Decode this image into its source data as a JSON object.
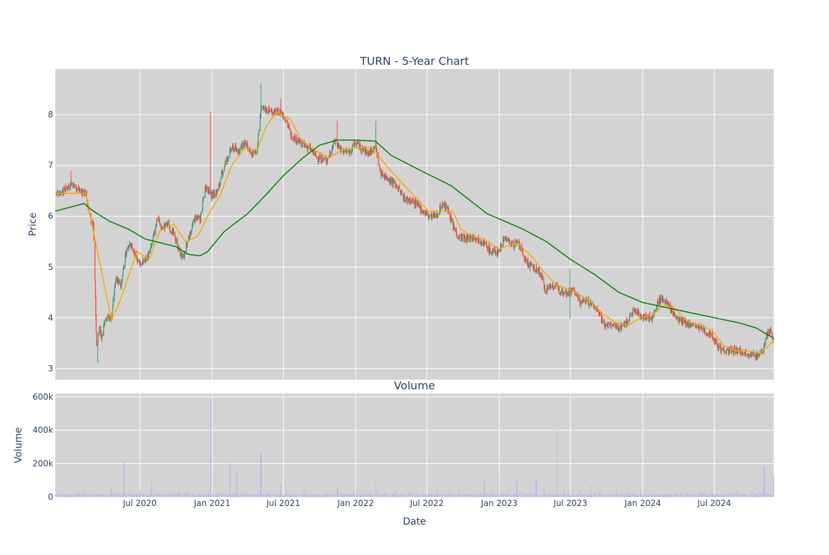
{
  "chart_data": [
    {
      "type": "candlestick",
      "title": "TURN - 5-Year Chart",
      "xlabel": "",
      "ylabel": "Price",
      "ylim": [
        2.78,
        8.9
      ],
      "yticks": [
        3,
        4,
        5,
        6,
        7,
        8
      ],
      "grid": true,
      "background": "#d3d3d3",
      "colors": {
        "up": "#3d9970",
        "down": "#ff4136",
        "ma_short": "#ffa500",
        "ma_long": "#008000"
      },
      "price_anchors": [
        [
          "2019-11-29",
          6.45
        ],
        [
          "2019-12-20",
          6.5
        ],
        [
          "2020-01-10",
          6.65
        ],
        [
          "2020-01-31",
          6.5
        ],
        [
          "2020-02-14",
          6.45
        ],
        [
          "2020-02-25",
          6.0
        ],
        [
          "2020-03-05",
          5.8
        ],
        [
          "2020-03-09",
          4.7
        ],
        [
          "2020-03-13",
          3.4
        ],
        [
          "2020-03-20",
          3.8
        ],
        [
          "2020-03-27",
          3.6
        ],
        [
          "2020-04-03",
          4.0
        ],
        [
          "2020-04-20",
          4.0
        ],
        [
          "2020-05-01",
          4.8
        ],
        [
          "2020-05-15",
          4.65
        ],
        [
          "2020-05-25",
          5.2
        ],
        [
          "2020-06-05",
          5.5
        ],
        [
          "2020-06-20",
          5.2
        ],
        [
          "2020-07-05",
          5.05
        ],
        [
          "2020-07-25",
          5.25
        ],
        [
          "2020-08-05",
          5.6
        ],
        [
          "2020-08-15",
          6.0
        ],
        [
          "2020-08-25",
          5.75
        ],
        [
          "2020-09-10",
          5.85
        ],
        [
          "2020-09-25",
          5.65
        ],
        [
          "2020-10-10",
          5.3
        ],
        [
          "2020-10-20",
          5.15
        ],
        [
          "2020-11-01",
          5.55
        ],
        [
          "2020-11-20",
          6.0
        ],
        [
          "2020-12-01",
          5.9
        ],
        [
          "2020-12-15",
          6.6
        ],
        [
          "2020-12-31",
          6.4
        ],
        [
          "2021-01-15",
          6.5
        ],
        [
          "2021-02-01",
          7.0
        ],
        [
          "2021-02-20",
          7.35
        ],
        [
          "2021-03-10",
          7.3
        ],
        [
          "2021-03-25",
          7.45
        ],
        [
          "2021-04-10",
          7.2
        ],
        [
          "2021-04-25",
          7.3
        ],
        [
          "2021-05-05",
          8.1
        ],
        [
          "2021-05-20",
          8.1
        ],
        [
          "2021-06-10",
          8.05
        ],
        [
          "2021-06-25",
          8.05
        ],
        [
          "2021-07-08",
          7.9
        ],
        [
          "2021-07-20",
          7.6
        ],
        [
          "2021-08-05",
          7.5
        ],
        [
          "2021-08-20",
          7.4
        ],
        [
          "2021-09-05",
          7.35
        ],
        [
          "2021-09-25",
          7.15
        ],
        [
          "2021-10-20",
          7.1
        ],
        [
          "2021-11-10",
          7.5
        ],
        [
          "2021-11-25",
          7.3
        ],
        [
          "2021-12-15",
          7.25
        ],
        [
          "2022-01-01",
          7.45
        ],
        [
          "2022-01-20",
          7.3
        ],
        [
          "2022-02-05",
          7.25
        ],
        [
          "2022-02-20",
          7.4
        ],
        [
          "2022-03-05",
          6.85
        ],
        [
          "2022-03-25",
          6.75
        ],
        [
          "2022-04-15",
          6.6
        ],
        [
          "2022-05-05",
          6.35
        ],
        [
          "2022-05-25",
          6.3
        ],
        [
          "2022-06-15",
          6.15
        ],
        [
          "2022-07-05",
          6.0
        ],
        [
          "2022-07-25",
          6.0
        ],
        [
          "2022-08-10",
          6.25
        ],
        [
          "2022-08-25",
          6.1
        ],
        [
          "2022-09-05",
          5.8
        ],
        [
          "2022-09-20",
          5.6
        ],
        [
          "2022-10-10",
          5.55
        ],
        [
          "2022-10-30",
          5.6
        ],
        [
          "2022-11-20",
          5.5
        ],
        [
          "2022-12-10",
          5.3
        ],
        [
          "2022-12-31",
          5.3
        ],
        [
          "2023-01-15",
          5.6
        ],
        [
          "2023-02-01",
          5.45
        ],
        [
          "2023-02-20",
          5.45
        ],
        [
          "2023-03-10",
          5.1
        ],
        [
          "2023-03-25",
          5.0
        ],
        [
          "2023-04-15",
          4.9
        ],
        [
          "2023-04-28",
          4.55
        ],
        [
          "2023-05-15",
          4.65
        ],
        [
          "2023-06-05",
          4.55
        ],
        [
          "2023-06-25",
          4.5
        ],
        [
          "2023-07-10",
          4.55
        ],
        [
          "2023-07-25",
          4.3
        ],
        [
          "2023-08-10",
          4.35
        ],
        [
          "2023-08-25",
          4.25
        ],
        [
          "2023-09-10",
          4.15
        ],
        [
          "2023-09-25",
          3.85
        ],
        [
          "2023-10-15",
          3.85
        ],
        [
          "2023-11-01",
          3.8
        ],
        [
          "2023-11-20",
          3.9
        ],
        [
          "2023-12-10",
          4.15
        ],
        [
          "2023-12-25",
          4.05
        ],
        [
          "2024-01-10",
          4.0
        ],
        [
          "2024-01-25",
          4.0
        ],
        [
          "2024-02-10",
          4.35
        ],
        [
          "2024-02-25",
          4.35
        ],
        [
          "2024-03-10",
          4.2
        ],
        [
          "2024-03-25",
          4.0
        ],
        [
          "2024-04-15",
          3.9
        ],
        [
          "2024-05-10",
          3.85
        ],
        [
          "2024-06-05",
          3.75
        ],
        [
          "2024-06-25",
          3.65
        ],
        [
          "2024-07-15",
          3.4
        ],
        [
          "2024-08-05",
          3.35
        ],
        [
          "2024-09-01",
          3.35
        ],
        [
          "2024-09-25",
          3.3
        ],
        [
          "2024-10-15",
          3.25
        ],
        [
          "2024-10-30",
          3.3
        ],
        [
          "2024-11-10",
          3.65
        ],
        [
          "2024-11-20",
          3.75
        ],
        [
          "2024-11-29",
          3.55
        ]
      ],
      "price_spikes": [
        [
          "2020-01-08",
          6.9
        ],
        [
          "2020-03-16",
          3.12
        ],
        [
          "2020-12-28",
          8.05
        ],
        [
          "2021-05-05",
          8.62
        ],
        [
          "2021-06-25",
          8.33
        ],
        [
          "2021-11-15",
          7.88
        ],
        [
          "2022-02-20",
          7.88
        ],
        [
          "2023-06-30",
          4.97
        ],
        [
          "2023-07-01",
          3.98
        ]
      ],
      "ma_short_anchors": [
        [
          "2019-11-29",
          6.45
        ],
        [
          "2020-02-15",
          6.45
        ],
        [
          "2020-03-10",
          5.5
        ],
        [
          "2020-04-20",
          3.95
        ],
        [
          "2020-05-15",
          4.4
        ],
        [
          "2020-06-10",
          5.0
        ],
        [
          "2020-06-25",
          5.3
        ],
        [
          "2020-07-25",
          5.15
        ],
        [
          "2020-08-20",
          5.7
        ],
        [
          "2020-09-25",
          5.85
        ],
        [
          "2020-10-25",
          5.5
        ],
        [
          "2020-11-25",
          5.6
        ],
        [
          "2020-12-20",
          6.0
        ],
        [
          "2021-01-20",
          6.4
        ],
        [
          "2021-02-20",
          7.0
        ],
        [
          "2021-03-25",
          7.35
        ],
        [
          "2021-04-25",
          7.3
        ],
        [
          "2021-05-20",
          7.8
        ],
        [
          "2021-06-15",
          8.05
        ],
        [
          "2021-07-20",
          7.9
        ],
        [
          "2021-08-15",
          7.5
        ],
        [
          "2021-09-20",
          7.3
        ],
        [
          "2021-10-25",
          7.15
        ],
        [
          "2021-11-25",
          7.3
        ],
        [
          "2021-12-25",
          7.35
        ],
        [
          "2022-02-10",
          7.35
        ],
        [
          "2022-03-25",
          6.95
        ],
        [
          "2022-05-05",
          6.6
        ],
        [
          "2022-06-05",
          6.35
        ],
        [
          "2022-07-05",
          6.1
        ],
        [
          "2022-08-15",
          6.1
        ],
        [
          "2022-09-05",
          6.1
        ],
        [
          "2022-09-25",
          5.75
        ],
        [
          "2022-10-25",
          5.6
        ],
        [
          "2022-11-25",
          5.55
        ],
        [
          "2022-12-31",
          5.35
        ],
        [
          "2023-02-01",
          5.45
        ],
        [
          "2023-02-20",
          5.45
        ],
        [
          "2023-03-25",
          5.2
        ],
        [
          "2023-04-25",
          4.9
        ],
        [
          "2023-05-25",
          4.65
        ],
        [
          "2023-06-30",
          4.55
        ],
        [
          "2023-07-25",
          4.45
        ],
        [
          "2023-08-25",
          4.3
        ],
        [
          "2023-09-25",
          4.05
        ],
        [
          "2023-10-25",
          3.9
        ],
        [
          "2023-11-25",
          3.85
        ],
        [
          "2023-12-25",
          4.0
        ],
        [
          "2024-01-25",
          4.05
        ],
        [
          "2024-02-25",
          4.25
        ],
        [
          "2024-03-20",
          4.2
        ],
        [
          "2024-04-20",
          3.95
        ],
        [
          "2024-05-25",
          3.85
        ],
        [
          "2024-06-25",
          3.75
        ],
        [
          "2024-07-25",
          3.45
        ],
        [
          "2024-08-25",
          3.35
        ],
        [
          "2024-09-25",
          3.35
        ],
        [
          "2024-10-25",
          3.3
        ],
        [
          "2024-11-15",
          3.45
        ],
        [
          "2024-11-29",
          3.55
        ]
      ],
      "ma_long_anchors": [
        [
          "2019-11-29",
          6.1
        ],
        [
          "2020-02-10",
          6.25
        ],
        [
          "2020-03-05",
          6.1
        ],
        [
          "2020-04-15",
          5.9
        ],
        [
          "2020-06-01",
          5.75
        ],
        [
          "2020-07-15",
          5.55
        ],
        [
          "2020-10-01",
          5.4
        ],
        [
          "2020-11-01",
          5.25
        ],
        [
          "2020-12-01",
          5.22
        ],
        [
          "2020-12-20",
          5.3
        ],
        [
          "2021-02-01",
          5.7
        ],
        [
          "2021-04-01",
          6.05
        ],
        [
          "2021-05-15",
          6.4
        ],
        [
          "2021-07-01",
          6.8
        ],
        [
          "2021-08-20",
          7.15
        ],
        [
          "2021-10-01",
          7.4
        ],
        [
          "2021-11-15",
          7.5
        ],
        [
          "2022-01-01",
          7.5
        ],
        [
          "2022-02-20",
          7.48
        ],
        [
          "2022-04-01",
          7.2
        ],
        [
          "2022-06-15",
          6.9
        ],
        [
          "2022-09-01",
          6.6
        ],
        [
          "2022-12-01",
          6.05
        ],
        [
          "2023-03-01",
          5.75
        ],
        [
          "2023-05-01",
          5.5
        ],
        [
          "2023-07-01",
          5.15
        ],
        [
          "2023-09-01",
          4.85
        ],
        [
          "2023-11-01",
          4.5
        ],
        [
          "2024-01-01",
          4.3
        ],
        [
          "2024-03-01",
          4.2
        ],
        [
          "2024-05-01",
          4.1
        ],
        [
          "2024-07-01",
          4.0
        ],
        [
          "2024-09-01",
          3.9
        ],
        [
          "2024-10-15",
          3.8
        ],
        [
          "2024-11-10",
          3.68
        ],
        [
          "2024-11-29",
          3.6
        ]
      ],
      "noise_seed": 7,
      "noise_amplitude": 0.07
    },
    {
      "type": "bar",
      "title": "Volume",
      "xlabel": "Date",
      "ylabel": "Volume",
      "ylim": [
        0,
        620000
      ],
      "yticks": [
        0,
        200000,
        400000,
        600000
      ],
      "ytick_labels": [
        "0",
        "200k",
        "400k",
        "600k"
      ],
      "grid": true,
      "background": "#d3d3d3",
      "bar_color": "#b8b8ea",
      "baseline_max": 22000,
      "volume_spikes": [
        [
          "2020-05-22",
          210000
        ],
        [
          "2020-04-20",
          55000
        ],
        [
          "2020-08-01",
          90000
        ],
        [
          "2020-12-28",
          590000
        ],
        [
          "2021-02-15",
          200000
        ],
        [
          "2021-03-05",
          140000
        ],
        [
          "2021-05-05",
          260000
        ],
        [
          "2021-06-25",
          75000
        ],
        [
          "2021-11-15",
          55000
        ],
        [
          "2022-02-20",
          85000
        ],
        [
          "2022-11-25",
          100000
        ],
        [
          "2022-12-31",
          130000
        ],
        [
          "2023-02-15",
          95000
        ],
        [
          "2023-04-05",
          110000
        ],
        [
          "2023-05-28",
          400000
        ],
        [
          "2023-08-20",
          70000
        ],
        [
          "2024-11-05",
          185000
        ],
        [
          "2024-11-29",
          120000
        ]
      ]
    }
  ],
  "xaxis": {
    "range": [
      "2019-11-29",
      "2024-11-29"
    ],
    "tick_dates": [
      "2020-07-01",
      "2021-01-01",
      "2021-07-01",
      "2022-01-01",
      "2022-07-01",
      "2023-01-01",
      "2023-07-01",
      "2024-01-01",
      "2024-07-01"
    ],
    "tick_labels": [
      "Jul 2020",
      "Jan 2021",
      "Jul 2021",
      "Jan 2022",
      "Jul 2022",
      "Jan 2023",
      "Jul 2023",
      "Jan 2024",
      "Jul 2024"
    ]
  }
}
